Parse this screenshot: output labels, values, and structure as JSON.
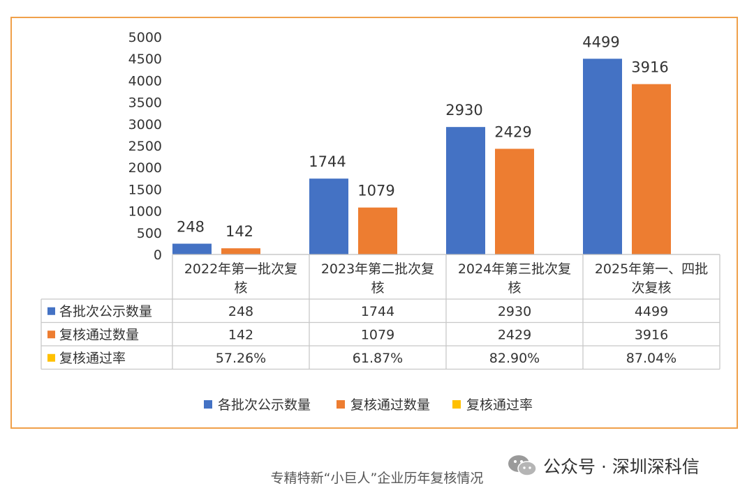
{
  "chart_data": {
    "type": "bar",
    "categories": [
      "2022年第一批次复核",
      "2023年第二批次复核",
      "2024年第三批次复核",
      "2025年第一、四批次复核"
    ],
    "category_lines": [
      [
        "2022年第一批次复",
        "核"
      ],
      [
        "2023年第二批次复",
        "核"
      ],
      [
        "2024年第三批次复",
        "核"
      ],
      [
        "2025年第一、四批",
        "次复核"
      ]
    ],
    "series": [
      {
        "name": "各批次公示数量",
        "values": [
          248,
          1744,
          2930,
          4499
        ],
        "color": "#4472c4",
        "display": [
          "248",
          "1744",
          "2930",
          "4499"
        ]
      },
      {
        "name": "复核通过数量",
        "values": [
          142,
          1079,
          2429,
          3916
        ],
        "color": "#ed7d31",
        "display": [
          "142",
          "1079",
          "2429",
          "3916"
        ]
      },
      {
        "name": "复核通过率",
        "values": [
          57.26,
          61.87,
          82.9,
          87.04
        ],
        "color": "#ffc000",
        "display": [
          "57.26%",
          "61.87%",
          "82.90%",
          "87.04%"
        ]
      }
    ],
    "ylim": [
      0,
      5000
    ],
    "yticks": [
      "0",
      "500",
      "1000",
      "1500",
      "2000",
      "2500",
      "3000",
      "3500",
      "4000",
      "4500",
      "5000"
    ],
    "data_table": true,
    "legend": "bottom"
  },
  "caption": "专精特新“小巨人”企业历年复核情况",
  "watermark": {
    "text": "公众号 · 深圳深科信",
    "icon": "wechat-icon"
  }
}
